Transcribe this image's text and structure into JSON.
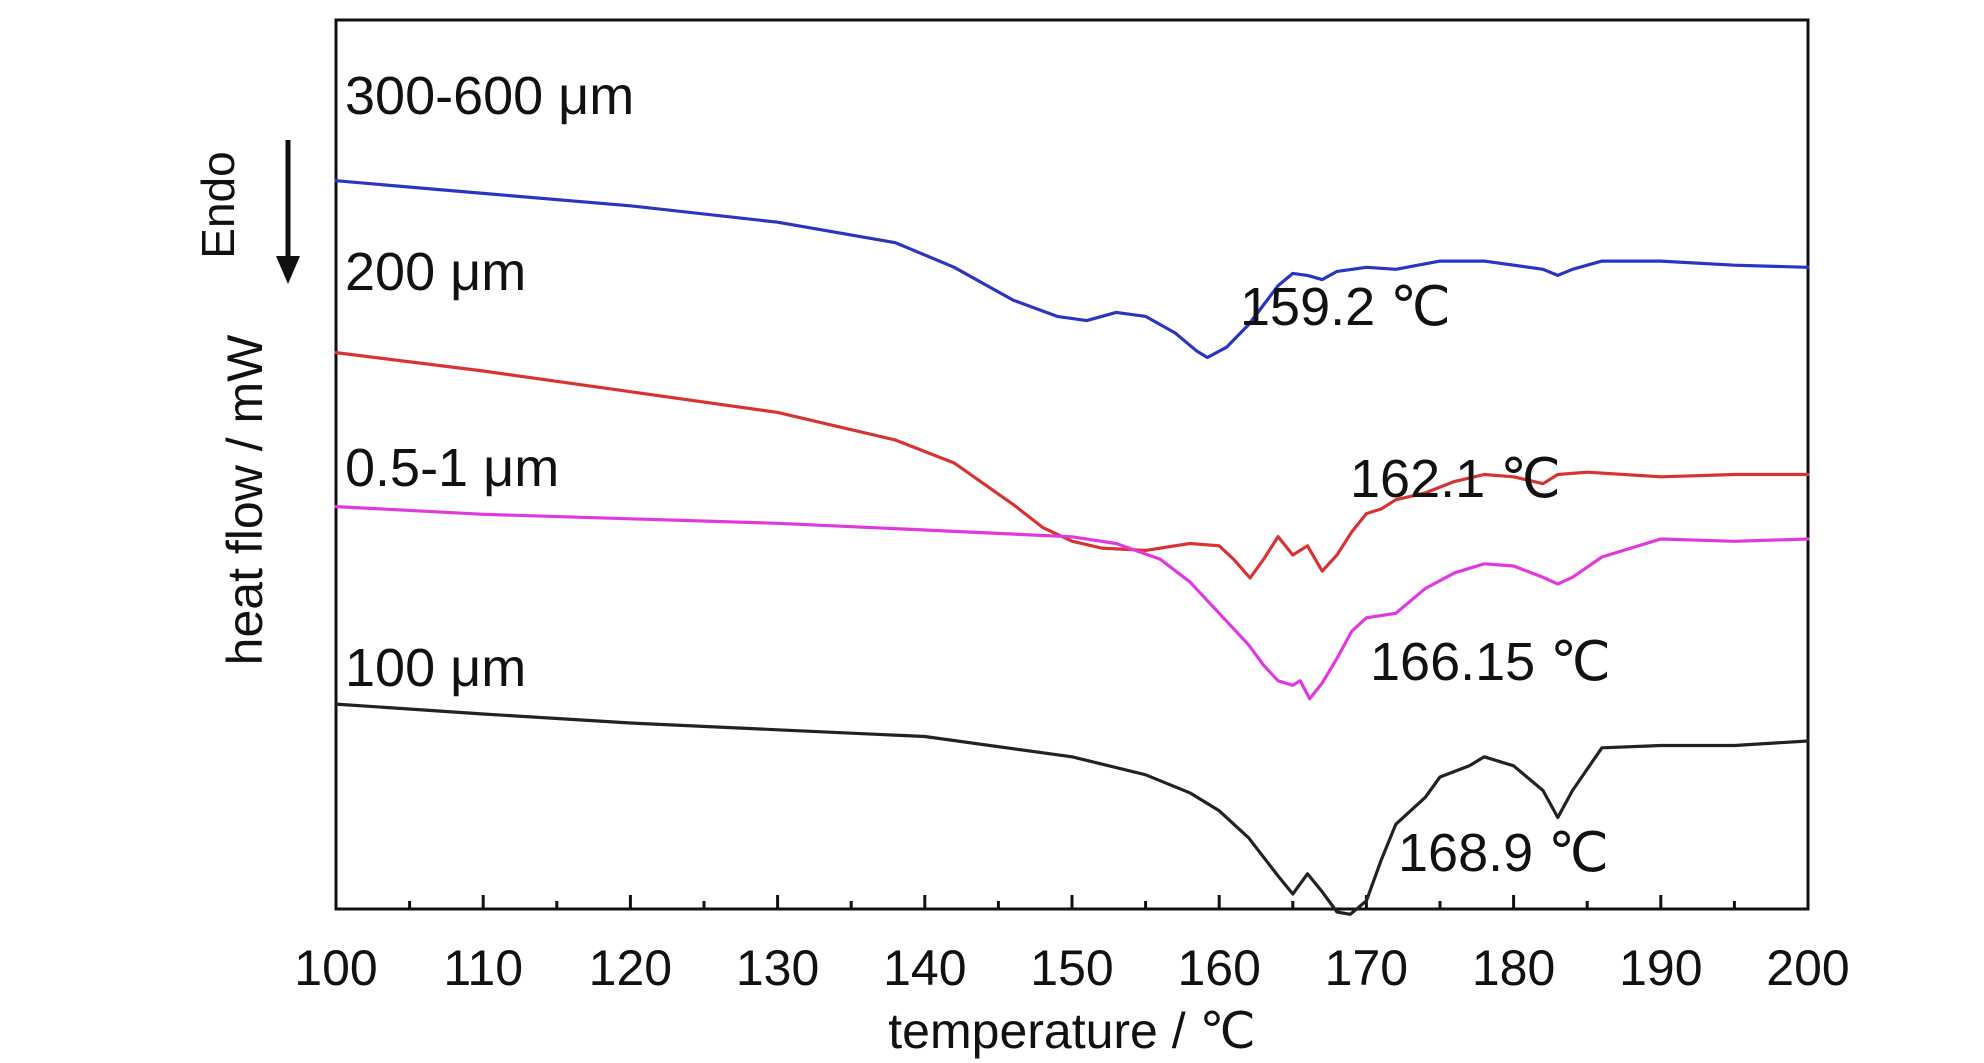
{
  "chart_data": {
    "type": "line",
    "xlabel": "temperature / ℃",
    "ylabel": "heat flow / mW",
    "xlim": [
      100,
      200
    ],
    "x_ticks": [
      "100",
      "110",
      "120",
      "130",
      "140",
      "150",
      "160",
      "170",
      "180",
      "190",
      "200"
    ],
    "y_ticks_shown": false,
    "grid": false,
    "legend": "none (series labeled directly on curves)",
    "annotation": {
      "text": "Endo",
      "arrow": "down"
    },
    "series": [
      {
        "name": "300-600 μm",
        "color": "#2b35c0",
        "peak_label": "159.2 ℃",
        "points": [
          [
            100,
            0.86
          ],
          [
            110,
            0.55
          ],
          [
            120,
            0.25
          ],
          [
            130,
            -0.15
          ],
          [
            138,
            -0.65
          ],
          [
            142,
            -1.25
          ],
          [
            146,
            -2.05
          ],
          [
            149,
            -2.45
          ],
          [
            151,
            -2.55
          ],
          [
            153,
            -2.35
          ],
          [
            155,
            -2.45
          ],
          [
            157,
            -2.85
          ],
          [
            158.5,
            -3.3
          ],
          [
            159.2,
            -3.45
          ],
          [
            160.5,
            -3.2
          ],
          [
            162,
            -2.65
          ],
          [
            164,
            -1.7
          ],
          [
            165,
            -1.4
          ],
          [
            166,
            -1.45
          ],
          [
            167,
            -1.55
          ],
          [
            168,
            -1.35
          ],
          [
            170,
            -1.25
          ],
          [
            172,
            -1.3
          ],
          [
            175,
            -1.1
          ],
          [
            178,
            -1.1
          ],
          [
            182,
            -1.3
          ],
          [
            183,
            -1.45
          ],
          [
            184,
            -1.3
          ],
          [
            186,
            -1.1
          ],
          [
            190,
            -1.1
          ],
          [
            195,
            -1.2
          ],
          [
            200,
            -1.25
          ]
        ]
      },
      {
        "name": "200 μm",
        "color": "#d63434",
        "peak_label": "162.1 ℃",
        "points": [
          [
            100,
            0.9
          ],
          [
            110,
            0.5
          ],
          [
            120,
            0.05
          ],
          [
            130,
            -0.4
          ],
          [
            138,
            -1.0
          ],
          [
            142,
            -1.5
          ],
          [
            146,
            -2.4
          ],
          [
            148,
            -2.9
          ],
          [
            150,
            -3.2
          ],
          [
            152,
            -3.35
          ],
          [
            155,
            -3.4
          ],
          [
            157,
            -3.3
          ],
          [
            158,
            -3.25
          ],
          [
            160,
            -3.3
          ],
          [
            161,
            -3.6
          ],
          [
            162.1,
            -4.0
          ],
          [
            163,
            -3.6
          ],
          [
            164,
            -3.1
          ],
          [
            165,
            -3.5
          ],
          [
            166,
            -3.3
          ],
          [
            167,
            -3.85
          ],
          [
            168,
            -3.5
          ],
          [
            169,
            -3.0
          ],
          [
            170,
            -2.6
          ],
          [
            171,
            -2.5
          ],
          [
            172,
            -2.3
          ],
          [
            174,
            -2.15
          ],
          [
            176,
            -1.9
          ],
          [
            178,
            -1.75
          ],
          [
            180,
            -1.8
          ],
          [
            182,
            -1.95
          ],
          [
            183,
            -1.75
          ],
          [
            185,
            -1.7
          ],
          [
            190,
            -1.8
          ],
          [
            195,
            -1.75
          ],
          [
            200,
            -1.75
          ]
        ]
      },
      {
        "name": "0.5-1 μm",
        "color": "#e039e0",
        "peak_label": "166.15 ℃",
        "points": [
          [
            100,
            0.72
          ],
          [
            110,
            0.55
          ],
          [
            120,
            0.45
          ],
          [
            130,
            0.35
          ],
          [
            140,
            0.2
          ],
          [
            150,
            0.05
          ],
          [
            153,
            -0.1
          ],
          [
            156,
            -0.45
          ],
          [
            158,
            -0.95
          ],
          [
            160,
            -1.65
          ],
          [
            162,
            -2.35
          ],
          [
            163,
            -2.8
          ],
          [
            164,
            -3.15
          ],
          [
            165,
            -3.25
          ],
          [
            165.5,
            -3.15
          ],
          [
            166.15,
            -3.55
          ],
          [
            167,
            -3.2
          ],
          [
            168,
            -2.65
          ],
          [
            169,
            -2.05
          ],
          [
            170,
            -1.75
          ],
          [
            172,
            -1.65
          ],
          [
            174,
            -1.1
          ],
          [
            176,
            -0.75
          ],
          [
            178,
            -0.55
          ],
          [
            180,
            -0.6
          ],
          [
            182,
            -0.85
          ],
          [
            183,
            -1.0
          ],
          [
            184,
            -0.85
          ],
          [
            186,
            -0.4
          ],
          [
            190,
            0.0
          ],
          [
            195,
            -0.05
          ],
          [
            200,
            0.0
          ]
        ]
      },
      {
        "name": "100 μm",
        "color": "#222222",
        "peak_label": "168.9 ℃",
        "points": [
          [
            100,
            0.62
          ],
          [
            110,
            0.4
          ],
          [
            120,
            0.2
          ],
          [
            130,
            0.05
          ],
          [
            140,
            -0.1
          ],
          [
            150,
            -0.55
          ],
          [
            155,
            -0.95
          ],
          [
            158,
            -1.35
          ],
          [
            160,
            -1.75
          ],
          [
            162,
            -2.35
          ],
          [
            164,
            -3.2
          ],
          [
            165,
            -3.6
          ],
          [
            166,
            -3.15
          ],
          [
            167,
            -3.55
          ],
          [
            168,
            -4.0
          ],
          [
            168.9,
            -4.05
          ],
          [
            170,
            -3.75
          ],
          [
            171,
            -2.85
          ],
          [
            172,
            -2.05
          ],
          [
            174,
            -1.45
          ],
          [
            175,
            -1.0
          ],
          [
            177,
            -0.75
          ],
          [
            178,
            -0.55
          ],
          [
            180,
            -0.75
          ],
          [
            182,
            -1.3
          ],
          [
            183,
            -1.9
          ],
          [
            184,
            -1.3
          ],
          [
            186,
            -0.35
          ],
          [
            190,
            -0.3
          ],
          [
            195,
            -0.3
          ],
          [
            200,
            -0.2
          ]
        ]
      }
    ]
  }
}
